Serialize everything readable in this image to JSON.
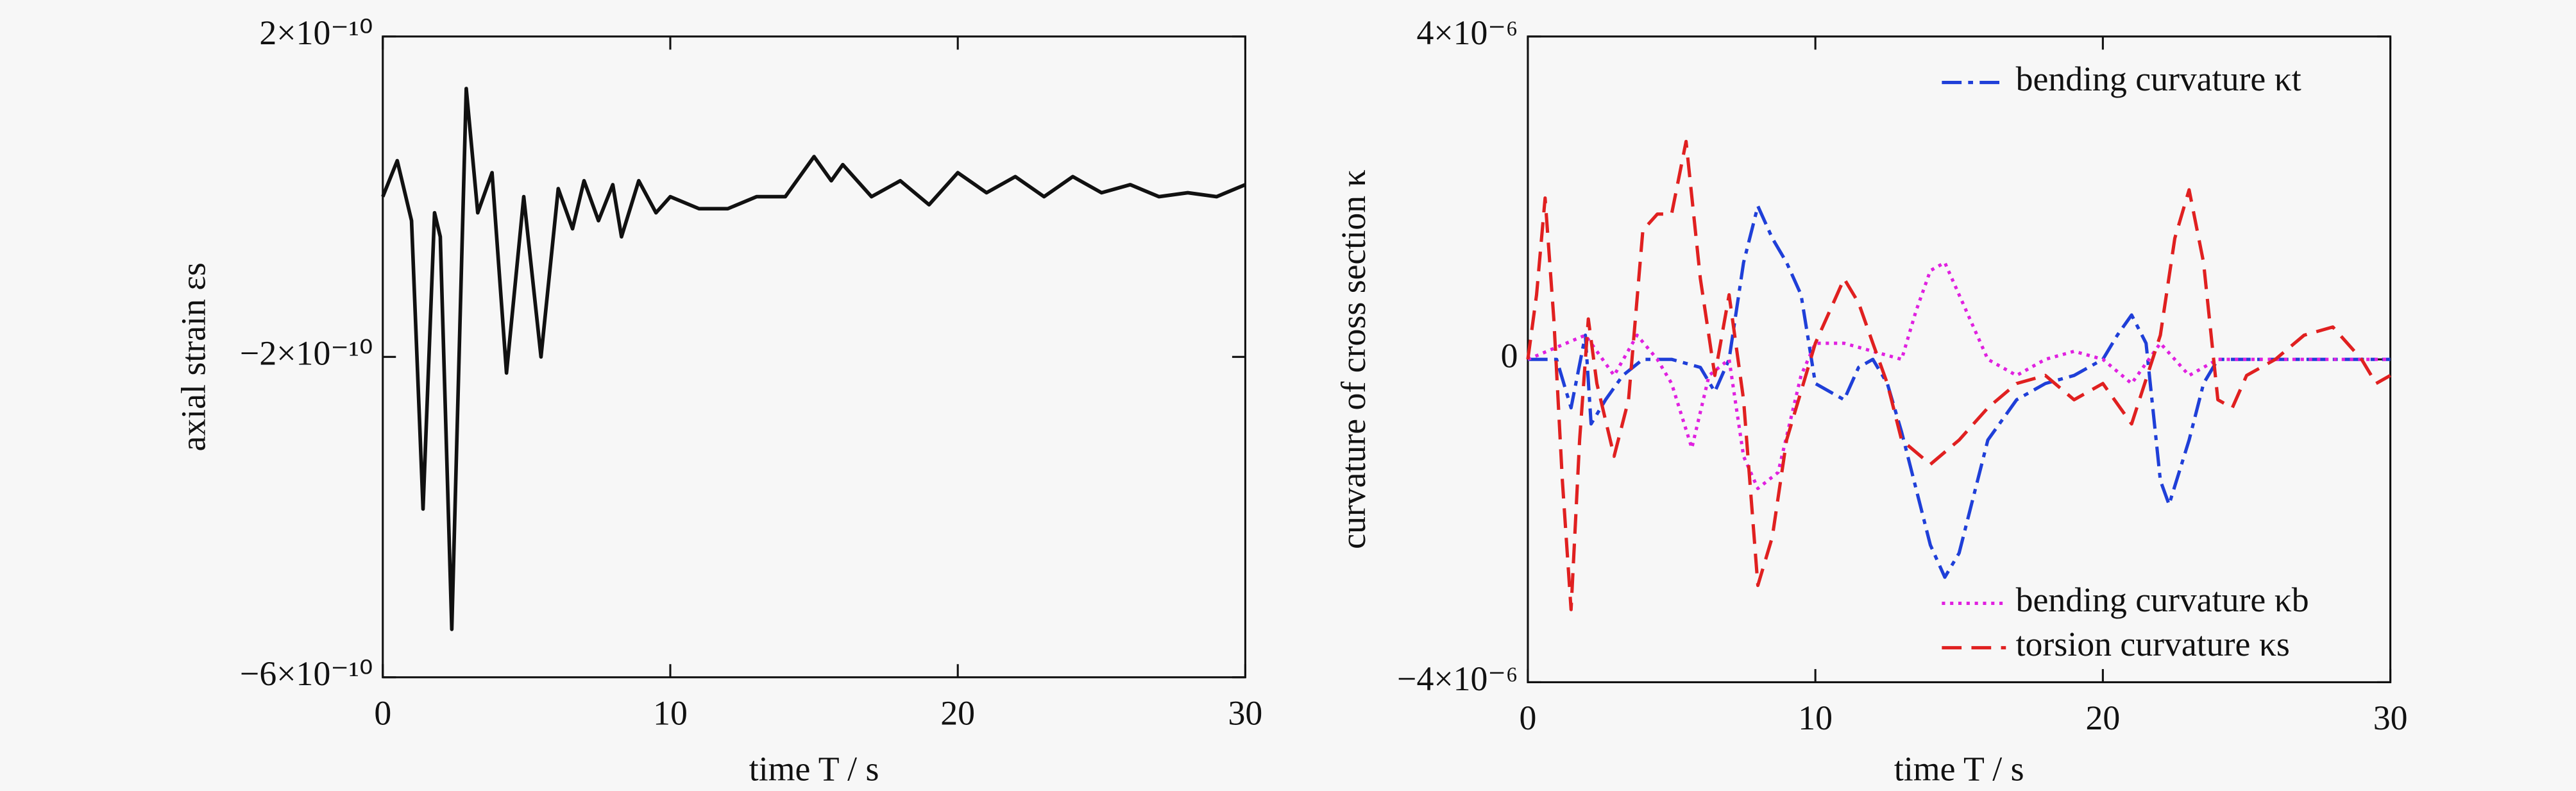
{
  "chart_data": [
    {
      "type": "line",
      "xlabel": "time T / s",
      "ylabel": "axial strain εs",
      "xlim": [
        0,
        30
      ],
      "xticks": [
        0,
        10,
        20,
        30
      ],
      "ylim": [
        -6e-10,
        2e-10
      ],
      "yticks": [
        {
          "value": 2e-10,
          "label": "2×10⁻¹⁰"
        },
        {
          "value": -2e-10,
          "label": "−2×10⁻¹⁰"
        },
        {
          "value": -6e-10,
          "label": "−6×10⁻¹⁰"
        }
      ],
      "color": "#111111",
      "x": [
        0,
        0.5,
        1.0,
        1.4,
        1.8,
        2.0,
        2.4,
        2.9,
        3.3,
        3.8,
        4.3,
        4.9,
        5.5,
        6.1,
        6.6,
        7.0,
        7.5,
        8.0,
        8.3,
        8.9,
        9.5,
        10,
        11,
        12,
        13,
        14,
        15,
        15.6,
        16,
        17,
        18,
        19,
        20,
        21,
        22,
        23,
        24,
        25,
        26,
        27,
        28,
        29,
        30
      ],
      "values": [
        0,
        4.5e-11,
        -3e-11,
        -3.9e-10,
        -2e-11,
        -5e-11,
        -5.4e-10,
        1.35e-10,
        -2e-11,
        3e-11,
        -2.2e-10,
        0,
        -2e-10,
        1e-11,
        -4e-11,
        2e-11,
        -3e-11,
        1.5e-11,
        -5e-11,
        2e-11,
        -2e-11,
        0,
        -1.5e-11,
        -1.5e-11,
        0,
        0,
        5e-11,
        2e-11,
        4e-11,
        0,
        2e-11,
        -1e-11,
        3e-11,
        5e-12,
        2.5e-11,
        0,
        2.5e-11,
        5e-12,
        1.5e-11,
        0,
        5e-12,
        0,
        1.5e-11
      ]
    },
    {
      "type": "line",
      "xlabel": "time T / s",
      "ylabel": "curvature of cross section κ",
      "xlim": [
        0,
        30
      ],
      "xticks": [
        0,
        10,
        20,
        30
      ],
      "ylim": [
        -4e-06,
        4e-06
      ],
      "yticks": [
        {
          "value": 4e-06,
          "label": "4×10⁻⁶"
        },
        0,
        {
          "value": -4e-06,
          "label": "−4×10⁻⁶"
        }
      ],
      "series": [
        {
          "name": "bending curvature κt",
          "color": "#1f3fd8",
          "dash": "12,4,3,4",
          "legend": "upper right",
          "x": [
            0,
            1,
            1.5,
            2,
            2.2,
            2.7,
            3.3,
            4,
            5,
            6,
            6.5,
            7,
            7.5,
            8,
            8.5,
            9,
            9.5,
            10,
            11,
            11.5,
            12,
            12.5,
            13,
            14,
            14.5,
            15,
            16,
            17,
            18,
            19,
            20,
            20.5,
            21,
            21.5,
            22,
            22.3,
            23,
            23.5,
            24,
            25,
            30
          ],
          "values": [
            0,
            0,
            -6e-07,
            3e-07,
            -8e-07,
            -5e-07,
            -2e-07,
            0,
            0,
            -1e-07,
            -4e-07,
            0,
            1.2e-06,
            1.9e-06,
            1.5e-06,
            1.2e-06,
            8e-07,
            -3e-07,
            -5e-07,
            -1e-07,
            0,
            -3e-07,
            -9e-07,
            -2.3e-06,
            -2.7e-06,
            -2.4e-06,
            -1e-06,
            -5e-07,
            -3e-07,
            -2e-07,
            0,
            3e-07,
            5.5e-07,
            2e-07,
            -1.5e-06,
            -1.8e-06,
            -1e-06,
            -3e-07,
            0,
            0,
            0
          ]
        },
        {
          "name": "bending curvature κb",
          "color": "#e020e0",
          "dash": "2,3",
          "legend": "lower right",
          "x": [
            0,
            2,
            3,
            3.8,
            4.5,
            5,
            5.7,
            6.3,
            7,
            7.5,
            8,
            8.7,
            9.5,
            10,
            11,
            12,
            13,
            13.5,
            14,
            14.5,
            15,
            16,
            17,
            18,
            19,
            20,
            21,
            22,
            23,
            24,
            25,
            30
          ],
          "values": [
            0,
            3e-07,
            -2e-07,
            3e-07,
            0,
            -3e-07,
            -1.1e-06,
            -2e-07,
            0,
            -1.2e-06,
            -1.6e-06,
            -1.4e-06,
            -2e-07,
            2e-07,
            2e-07,
            1e-07,
            0,
            6e-07,
            1.1e-06,
            1.2e-06,
            8e-07,
            0,
            -2e-07,
            0,
            1e-07,
            0,
            -3e-07,
            2e-07,
            -2e-07,
            0,
            0,
            0
          ]
        },
        {
          "name": "torsion curvature κs",
          "color": "#e02020",
          "dash": "12,6",
          "legend": "lower right",
          "x": [
            0,
            0.3,
            0.6,
            0.9,
            1.2,
            1.5,
            1.8,
            2.1,
            2.4,
            3,
            3.5,
            4,
            4.5,
            5,
            5.5,
            6,
            6.5,
            7,
            7.5,
            8,
            8.5,
            9,
            10,
            10.5,
            11,
            11.5,
            12,
            12.5,
            13,
            14,
            15,
            16,
            17,
            18,
            19,
            20,
            21,
            22,
            22.5,
            23,
            23.5,
            24,
            24.5,
            25,
            26,
            27,
            28,
            29,
            29.5,
            30
          ],
          "values": [
            0,
            8e-07,
            2e-06,
            5e-07,
            -1.5e-06,
            -3.1e-06,
            -1e-06,
            5e-07,
            -3e-07,
            -1.2e-06,
            -5e-07,
            1.6e-06,
            1.8e-06,
            1.8e-06,
            2.7e-06,
            1e-06,
            -2e-07,
            8e-07,
            -5e-07,
            -2.8e-06,
            -2.2e-06,
            -1e-06,
            2e-07,
            6e-07,
            1e-06,
            7e-07,
            2e-07,
            -3e-07,
            -1e-06,
            -1.3e-06,
            -1e-06,
            -6e-07,
            -3e-07,
            -2e-07,
            -5e-07,
            -3e-07,
            -8e-07,
            3e-07,
            1.5e-06,
            2.1e-06,
            1.2e-06,
            -5e-07,
            -6e-07,
            -2e-07,
            0,
            3e-07,
            4e-07,
            0,
            -3e-07,
            -2e-07
          ]
        }
      ]
    }
  ]
}
